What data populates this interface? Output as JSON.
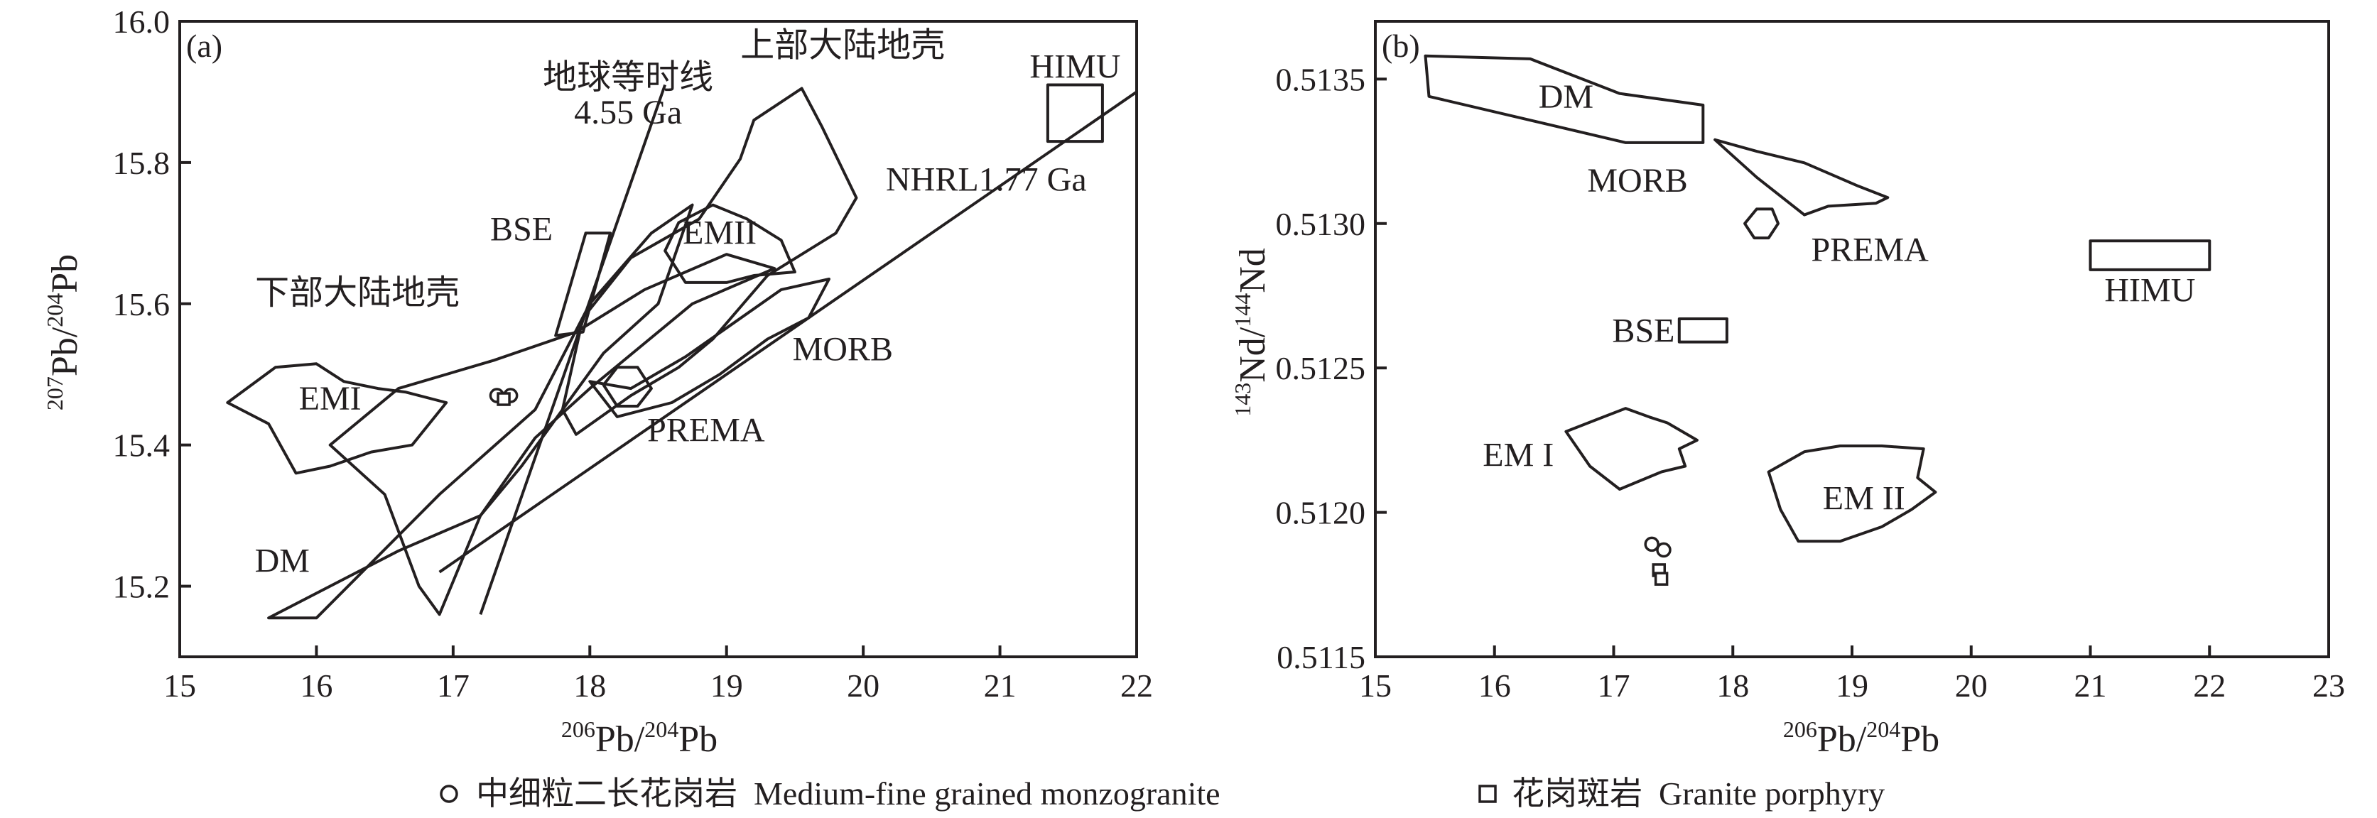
{
  "legend": {
    "items": [
      {
        "symbol": "circle",
        "label": "中细粒二长花岗岩  Medium-fine grained monzogranite"
      },
      {
        "symbol": "square",
        "label": "花岗斑岩  Granite porphyry"
      }
    ]
  },
  "chart_data": [
    {
      "type": "scatter",
      "panel_label": "(a)",
      "xlabel_pre": "206",
      "xlabel_main": "Pb/",
      "xlabel_sup2": "204",
      "xlabel_end": "Pb",
      "ylabel_pre": "207",
      "ylabel_main": "Pb/",
      "ylabel_sup2": "204",
      "ylabel_end": "Pb",
      "xlim": [
        15,
        22
      ],
      "ylim": [
        15.1,
        16.0
      ],
      "xticks": [
        "15",
        "16",
        "17",
        "18",
        "19",
        "20",
        "21",
        "22"
      ],
      "yticks": [
        "15.2",
        "15.4",
        "15.6",
        "15.8",
        "16.0"
      ],
      "fields": [
        {
          "name": "DM",
          "points": [
            [
              15.65,
              15.155
            ],
            [
              16.0,
              15.155
            ],
            [
              16.9,
              15.33
            ],
            [
              17.6,
              15.45
            ],
            [
              18.0,
              15.6
            ],
            [
              18.45,
              15.7
            ],
            [
              18.75,
              15.74
            ],
            [
              18.5,
              15.6
            ],
            [
              18.1,
              15.53
            ],
            [
              17.5,
              15.37
            ],
            [
              17.2,
              15.3
            ],
            [
              16.6,
              15.25
            ]
          ]
        },
        {
          "name": "EMI",
          "points": [
            [
              15.35,
              15.46
            ],
            [
              15.7,
              15.51
            ],
            [
              16.0,
              15.515
            ],
            [
              16.2,
              15.49
            ],
            [
              16.45,
              15.48
            ],
            [
              16.65,
              15.475
            ],
            [
              16.95,
              15.46
            ],
            [
              16.7,
              15.4
            ],
            [
              16.4,
              15.39
            ],
            [
              16.1,
              15.37
            ],
            [
              15.85,
              15.36
            ],
            [
              15.65,
              15.43
            ]
          ]
        },
        {
          "name": "EMII",
          "points": [
            [
              18.55,
              15.675
            ],
            [
              18.65,
              15.715
            ],
            [
              18.9,
              15.74
            ],
            [
              19.15,
              15.72
            ],
            [
              19.4,
              15.69
            ],
            [
              19.5,
              15.645
            ],
            [
              19.2,
              15.64
            ],
            [
              19.0,
              15.63
            ],
            [
              18.7,
              15.63
            ]
          ]
        },
        {
          "name": "上部大陆地壳",
          "points": [
            [
              17.8,
              15.45
            ],
            [
              17.95,
              15.58
            ],
            [
              18.3,
              15.665
            ],
            [
              18.8,
              15.72
            ],
            [
              19.1,
              15.805
            ],
            [
              19.2,
              15.86
            ],
            [
              19.55,
              15.905
            ],
            [
              19.7,
              15.85
            ],
            [
              19.95,
              15.75
            ],
            [
              19.8,
              15.7
            ],
            [
              19.3,
              15.64
            ],
            [
              18.9,
              15.55
            ],
            [
              18.65,
              15.51
            ],
            [
              18.3,
              15.47
            ],
            [
              17.9,
              15.415
            ]
          ]
        },
        {
          "name": "下部大陆地壳",
          "points": [
            [
              16.1,
              15.4
            ],
            [
              16.6,
              15.48
            ],
            [
              17.3,
              15.52
            ],
            [
              17.9,
              15.56
            ],
            [
              18.4,
              15.62
            ],
            [
              19.0,
              15.67
            ],
            [
              19.35,
              15.65
            ],
            [
              18.75,
              15.6
            ],
            [
              18.0,
              15.48
            ],
            [
              17.6,
              15.41
            ],
            [
              17.2,
              15.3
            ],
            [
              16.9,
              15.16
            ],
            [
              16.75,
              15.2
            ],
            [
              16.5,
              15.33
            ]
          ]
        },
        {
          "name": "MORB",
          "points": [
            [
              18.0,
              15.49
            ],
            [
              18.3,
              15.48
            ],
            [
              18.7,
              15.525
            ],
            [
              19.4,
              15.62
            ],
            [
              19.75,
              15.635
            ],
            [
              19.6,
              15.58
            ],
            [
              19.3,
              15.55
            ],
            [
              18.95,
              15.5
            ],
            [
              18.6,
              15.46
            ],
            [
              18.2,
              15.44
            ]
          ]
        },
        {
          "name": "PREMA",
          "points": [
            [
              18.1,
              15.485
            ],
            [
              18.2,
              15.51
            ],
            [
              18.35,
              15.51
            ],
            [
              18.45,
              15.48
            ],
            [
              18.35,
              15.455
            ],
            [
              18.2,
              15.455
            ]
          ]
        }
      ],
      "boxes": [
        {
          "name": "BSE",
          "corners": [
            [
              17.75,
              15.555
            ],
            [
              17.95,
              15.56
            ],
            [
              18.15,
              15.7
            ],
            [
              17.97,
              15.7
            ]
          ]
        },
        {
          "name": "HIMU",
          "corners": [
            [
              21.35,
              15.83
            ],
            [
              21.75,
              15.83
            ],
            [
              21.75,
              15.91
            ],
            [
              21.35,
              15.91
            ]
          ]
        }
      ],
      "reference_lines": [
        {
          "name": "地球等时线",
          "name2": "4.55 Ga",
          "from": [
            17.2,
            15.16
          ],
          "to": [
            18.55,
            15.91
          ]
        },
        {
          "name": "NHRL1.77 Ga",
          "from": [
            16.9,
            15.22
          ],
          "to": [
            22.0,
            15.9
          ]
        }
      ],
      "labels": [
        {
          "text": "DM",
          "x": 15.75,
          "y": 15.22
        },
        {
          "text": "EMI",
          "x": 16.1,
          "y": 15.45
        },
        {
          "text": "EMII",
          "x": 18.95,
          "y": 15.685
        },
        {
          "text": "BSE",
          "x": 17.5,
          "y": 15.69
        },
        {
          "text": "下部大陆地壳",
          "x": 16.3,
          "y": 15.6
        },
        {
          "text": "上部大陆地壳",
          "x": 19.85,
          "y": 15.95
        },
        {
          "text": "地球等时线",
          "x": 18.28,
          "y": 15.905
        },
        {
          "text": "4.55 Ga",
          "x": 18.28,
          "y": 15.855
        },
        {
          "text": "HIMU",
          "x": 21.55,
          "y": 15.92
        },
        {
          "text": "NHRL1.77 Ga",
          "x": 20.9,
          "y": 15.76
        },
        {
          "text": "MORB",
          "x": 19.85,
          "y": 15.52
        },
        {
          "text": "PREMA",
          "x": 18.85,
          "y": 15.405
        }
      ],
      "samples": {
        "circle": [
          [
            17.32,
            15.47
          ],
          [
            17.42,
            15.47
          ]
        ],
        "square": [
          [
            17.37,
            15.465
          ]
        ]
      }
    },
    {
      "type": "scatter",
      "panel_label": "(b)",
      "xlabel_pre": "206",
      "xlabel_main": "Pb/",
      "xlabel_sup2": "204",
      "xlabel_end": "Pb",
      "ylabel_pre": "143",
      "ylabel_main": "Nd/",
      "ylabel_sup2": "144",
      "ylabel_end": "Nd",
      "xlim": [
        15,
        23
      ],
      "ylim": [
        0.5115,
        0.5137
      ],
      "xticks": [
        "15",
        "16",
        "17",
        "18",
        "19",
        "20",
        "21",
        "22",
        "23"
      ],
      "yticks": [
        "0.5115",
        "0.5120",
        "0.5125",
        "0.5130",
        "0.5135"
      ],
      "fields": [
        {
          "name": "DM",
          "points": [
            [
              15.42,
              0.51358
            ],
            [
              16.3,
              0.51357
            ],
            [
              17.05,
              0.51345
            ],
            [
              17.75,
              0.51341
            ],
            [
              17.75,
              0.51328
            ],
            [
              17.1,
              0.51328
            ],
            [
              15.45,
              0.51344
            ]
          ]
        },
        {
          "name": "MORB",
          "points": [
            [
              17.85,
              0.51329
            ],
            [
              18.2,
              0.51325
            ],
            [
              18.6,
              0.51321
            ],
            [
              19.05,
              0.51313
            ],
            [
              19.3,
              0.51309
            ],
            [
              19.2,
              0.51307
            ],
            [
              18.8,
              0.51306
            ],
            [
              18.6,
              0.51303
            ],
            [
              18.2,
              0.51316
            ]
          ]
        },
        {
          "name": "PREMA",
          "points": [
            [
              18.1,
              0.513
            ],
            [
              18.2,
              0.51305
            ],
            [
              18.33,
              0.51305
            ],
            [
              18.38,
              0.513
            ],
            [
              18.3,
              0.51295
            ],
            [
              18.18,
              0.51295
            ]
          ]
        },
        {
          "name": "EM I",
          "points": [
            [
              16.6,
              0.51228
            ],
            [
              16.85,
              0.51232
            ],
            [
              17.1,
              0.51236
            ],
            [
              17.3,
              0.51233
            ],
            [
              17.45,
              0.51231
            ],
            [
              17.7,
              0.51225
            ],
            [
              17.55,
              0.51222
            ],
            [
              17.6,
              0.51216
            ],
            [
              17.4,
              0.51214
            ],
            [
              17.05,
              0.51208
            ],
            [
              16.8,
              0.51216
            ]
          ]
        },
        {
          "name": "EM II",
          "points": [
            [
              18.3,
              0.51214
            ],
            [
              18.6,
              0.51221
            ],
            [
              18.9,
              0.51223
            ],
            [
              19.25,
              0.51223
            ],
            [
              19.6,
              0.51222
            ],
            [
              19.55,
              0.51212
            ],
            [
              19.7,
              0.51207
            ],
            [
              19.5,
              0.51201
            ],
            [
              19.25,
              0.51195
            ],
            [
              18.9,
              0.5119
            ],
            [
              18.55,
              0.5119
            ],
            [
              18.4,
              0.51201
            ]
          ]
        }
      ],
      "boxes": [
        {
          "name": "BSE",
          "corners": [
            [
              17.55,
              0.51259
            ],
            [
              17.95,
              0.51259
            ],
            [
              17.95,
              0.51267
            ],
            [
              17.55,
              0.51267
            ]
          ]
        },
        {
          "name": "HIMU",
          "corners": [
            [
              21.0,
              0.51284
            ],
            [
              22.0,
              0.51284
            ],
            [
              22.0,
              0.51294
            ],
            [
              21.0,
              0.51294
            ]
          ]
        }
      ],
      "reference_lines": [],
      "labels": [
        {
          "text": "DM",
          "x": 16.6,
          "y": 0.5134
        },
        {
          "text": "MORB",
          "x": 17.2,
          "y": 0.51311
        },
        {
          "text": "PREMA",
          "x": 19.15,
          "y": 0.51287
        },
        {
          "text": "BSE",
          "x": 17.25,
          "y": 0.51259
        },
        {
          "text": "HIMU",
          "x": 21.5,
          "y": 0.51273
        },
        {
          "text": "EM I",
          "x": 16.2,
          "y": 0.51216
        },
        {
          "text": "EM II",
          "x": 19.1,
          "y": 0.51201
        }
      ],
      "samples": {
        "circle": [
          [
            17.32,
            0.51189
          ],
          [
            17.42,
            0.51187
          ]
        ],
        "square": [
          [
            17.38,
            0.5118
          ],
          [
            17.4,
            0.51177
          ]
        ]
      }
    }
  ]
}
